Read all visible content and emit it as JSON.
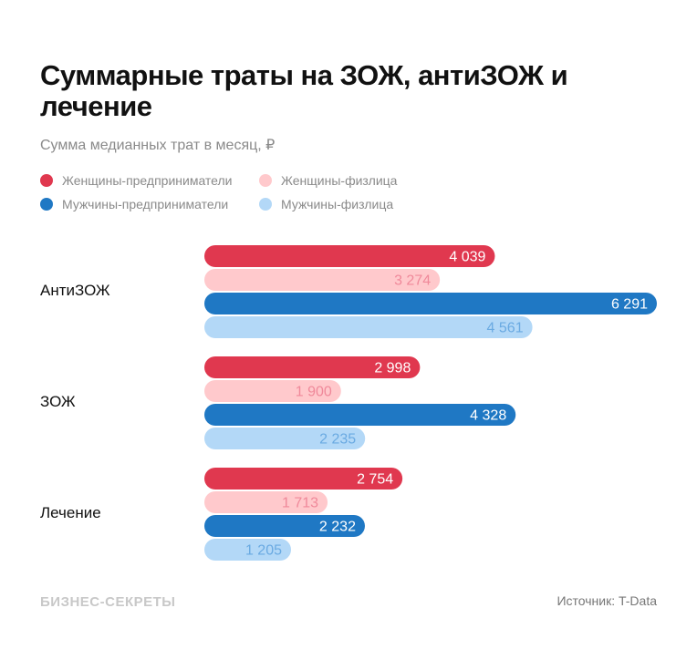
{
  "title": "Суммарные траты на ЗОЖ, антиЗОЖ и лечение",
  "subtitle": "Сумма медианных трат в месяц, ₽",
  "brand": "БИЗНЕС-СЕКРЕТЫ",
  "source": "Источник: T-Data",
  "chart_data": {
    "type": "bar",
    "orientation": "horizontal",
    "categories": [
      "АнтиЗОЖ",
      "ЗОЖ",
      "Лечение"
    ],
    "series": [
      {
        "name": "Женщины-предприниматели",
        "color": "#e0384f",
        "label_color": "#ffffff",
        "values": [
          4039,
          2998,
          2754
        ],
        "labels": [
          "4 039",
          "2 998",
          "2 754"
        ]
      },
      {
        "name": "Женщины-физлица",
        "color": "#ffc9cc",
        "label_color": "#f0899a",
        "values": [
          3274,
          1900,
          1713
        ],
        "labels": [
          "3 274",
          "1 900",
          "1 713"
        ]
      },
      {
        "name": "Мужчины-предприниматели",
        "color": "#1f78c4",
        "label_color": "#ffffff",
        "values": [
          6291,
          4328,
          2232
        ],
        "labels": [
          "6 291",
          "4 328",
          "2 232"
        ]
      },
      {
        "name": "Мужчины-физлица",
        "color": "#b3d8f7",
        "label_color": "#6aaae2",
        "values": [
          4561,
          2235,
          1205
        ],
        "labels": [
          "4 561",
          "2 235",
          "1 205"
        ]
      }
    ],
    "xlim": [
      0,
      6291
    ],
    "legend": "top-left",
    "grid": false
  }
}
